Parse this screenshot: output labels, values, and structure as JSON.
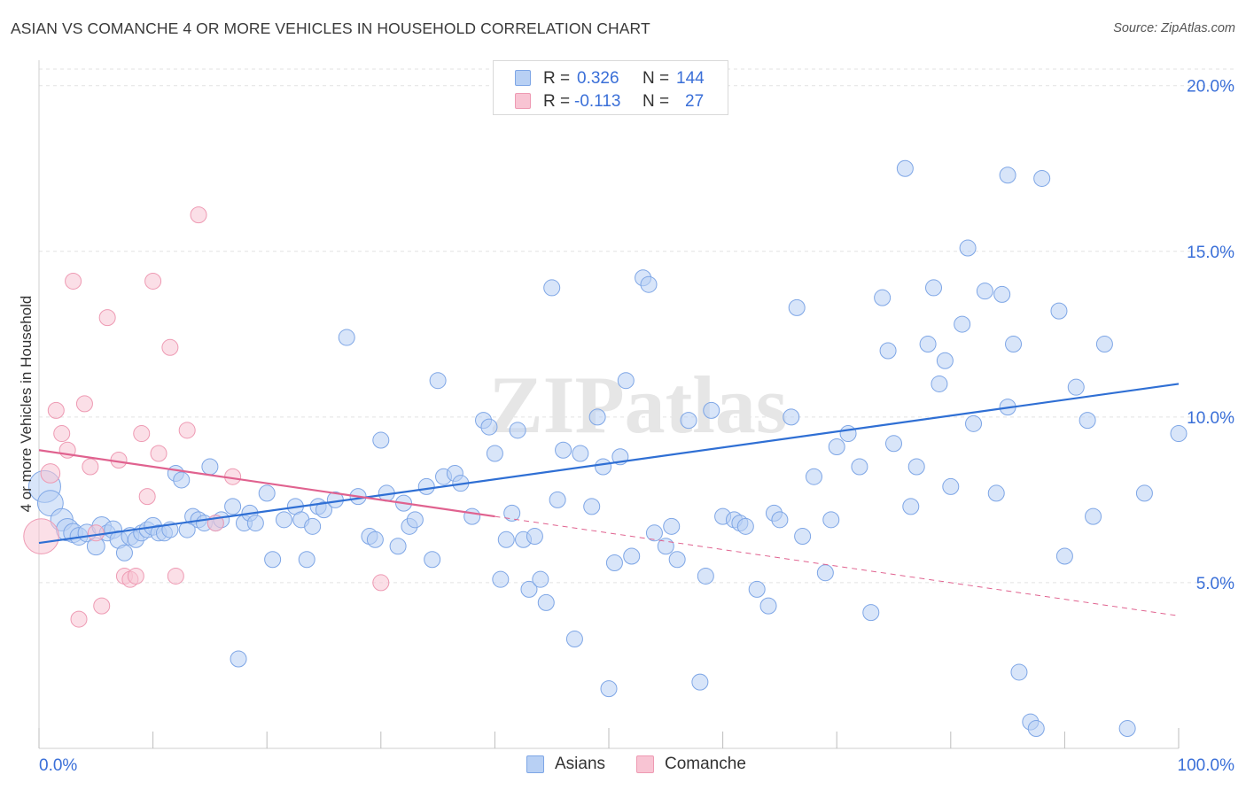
{
  "title": "ASIAN VS COMANCHE 4 OR MORE VEHICLES IN HOUSEHOLD CORRELATION CHART",
  "source": "Source: ZipAtlas.com",
  "watermark": "ZIPatlas",
  "legend": {
    "rows": [
      {
        "r_label": "R =",
        "r_value": "0.326",
        "n_label": "N =",
        "n_value": "144"
      },
      {
        "r_label": "R =",
        "r_value": "-0.113",
        "n_label": "N =",
        "n_value": "27"
      }
    ]
  },
  "colors": {
    "asians_fill": "#b8d0f4",
    "asians_stroke": "#7ea6e6",
    "asians_line": "#2f6fd4",
    "comanche_fill": "#f8c4d3",
    "comanche_stroke": "#ee9ab3",
    "comanche_line": "#e0628f",
    "tick_label": "#3a6fd8",
    "grid": "#e2e2e2"
  },
  "chart_data": {
    "type": "scatter",
    "title": "ASIAN VS COMANCHE 4 OR MORE VEHICLES IN HOUSEHOLD CORRELATION CHART",
    "xlabel": "",
    "ylabel": "4 or more Vehicles in Household",
    "xlim": [
      0,
      100
    ],
    "ylim": [
      0,
      20.5
    ],
    "x_ticks": [
      "0.0%",
      "100.0%"
    ],
    "y_ticks": [
      {
        "value": 5,
        "label": "5.0%"
      },
      {
        "value": 10,
        "label": "10.0%"
      },
      {
        "value": 15,
        "label": "15.0%"
      },
      {
        "value": 20,
        "label": "20.0%"
      }
    ],
    "grid": true,
    "legend_position": "top-center",
    "series": [
      {
        "name": "Asians",
        "r": 0.326,
        "n": 144,
        "trend": {
          "x0": 0,
          "y0": 6.2,
          "x1": 100,
          "y1": 11.0
        },
        "points": [
          [
            0.5,
            7.9,
            20
          ],
          [
            1.0,
            7.4,
            16
          ],
          [
            2.0,
            6.9,
            14
          ],
          [
            2.5,
            6.6,
            14
          ],
          [
            3.0,
            6.5,
            12
          ],
          [
            3.5,
            6.4,
            11
          ],
          [
            4.2,
            6.5,
            11
          ],
          [
            5.0,
            6.1,
            11
          ],
          [
            5.5,
            6.7,
            12
          ],
          [
            6.0,
            6.5,
            10
          ],
          [
            6.5,
            6.6,
            11
          ],
          [
            7.0,
            6.3,
            11
          ],
          [
            7.5,
            5.9,
            10
          ],
          [
            8.0,
            6.4,
            11
          ],
          [
            8.5,
            6.3,
            10
          ],
          [
            9.0,
            6.5,
            10
          ],
          [
            9.5,
            6.6,
            10
          ],
          [
            10.0,
            6.7,
            11
          ],
          [
            10.5,
            6.5,
            10
          ],
          [
            11.0,
            6.5,
            10
          ],
          [
            11.5,
            6.6,
            10
          ],
          [
            12.0,
            8.3,
            10
          ],
          [
            12.5,
            8.1,
            10
          ],
          [
            13.0,
            6.6,
            10
          ],
          [
            13.5,
            7.0,
            10
          ],
          [
            14.0,
            6.9,
            10
          ],
          [
            14.5,
            6.8,
            10
          ],
          [
            15.0,
            8.5,
            10
          ],
          [
            15.5,
            6.8,
            10
          ],
          [
            16.0,
            6.9,
            10
          ],
          [
            17.0,
            7.3,
            10
          ],
          [
            17.5,
            2.7,
            10
          ],
          [
            18.0,
            6.8,
            10
          ],
          [
            18.5,
            7.1,
            10
          ],
          [
            19.0,
            6.8,
            10
          ],
          [
            20.0,
            7.7,
            10
          ],
          [
            20.5,
            5.7,
            10
          ],
          [
            21.5,
            6.9,
            10
          ],
          [
            22.5,
            7.3,
            10
          ],
          [
            23.0,
            6.9,
            10
          ],
          [
            23.5,
            5.7,
            10
          ],
          [
            24.0,
            6.7,
            10
          ],
          [
            24.5,
            7.3,
            10
          ],
          [
            25.0,
            7.2,
            10
          ],
          [
            26.0,
            7.5,
            10
          ],
          [
            27.0,
            12.4,
            10
          ],
          [
            28.0,
            7.6,
            10
          ],
          [
            29.0,
            6.4,
            10
          ],
          [
            29.5,
            6.3,
            10
          ],
          [
            30.0,
            9.3,
            10
          ],
          [
            30.5,
            7.7,
            10
          ],
          [
            31.5,
            6.1,
            10
          ],
          [
            32.0,
            7.4,
            10
          ],
          [
            32.5,
            6.7,
            10
          ],
          [
            33.0,
            6.9,
            10
          ],
          [
            34.0,
            7.9,
            10
          ],
          [
            34.5,
            5.7,
            10
          ],
          [
            35.0,
            11.1,
            10
          ],
          [
            35.5,
            8.2,
            10
          ],
          [
            36.5,
            8.3,
            10
          ],
          [
            37.0,
            8.0,
            10
          ],
          [
            38.0,
            7.0,
            10
          ],
          [
            39.0,
            9.9,
            10
          ],
          [
            39.5,
            9.7,
            10
          ],
          [
            40.0,
            8.9,
            10
          ],
          [
            40.5,
            5.1,
            10
          ],
          [
            41.0,
            6.3,
            10
          ],
          [
            41.5,
            7.1,
            10
          ],
          [
            42.0,
            9.6,
            10
          ],
          [
            42.5,
            6.3,
            10
          ],
          [
            43.0,
            4.8,
            10
          ],
          [
            43.5,
            6.4,
            10
          ],
          [
            44.0,
            5.1,
            10
          ],
          [
            44.5,
            4.4,
            10
          ],
          [
            45.0,
            13.9,
            10
          ],
          [
            45.5,
            7.5,
            10
          ],
          [
            46.0,
            9.0,
            10
          ],
          [
            47.0,
            3.3,
            10
          ],
          [
            47.5,
            8.9,
            10
          ],
          [
            48.5,
            7.3,
            10
          ],
          [
            49.0,
            10.0,
            10
          ],
          [
            49.5,
            8.5,
            10
          ],
          [
            50.0,
            1.8,
            10
          ],
          [
            50.5,
            5.6,
            10
          ],
          [
            51.0,
            8.8,
            10
          ],
          [
            51.5,
            11.1,
            10
          ],
          [
            52.0,
            5.8,
            10
          ],
          [
            53.0,
            14.2,
            10
          ],
          [
            53.5,
            14.0,
            10
          ],
          [
            54.0,
            6.5,
            10
          ],
          [
            55.0,
            6.1,
            10
          ],
          [
            55.5,
            6.7,
            10
          ],
          [
            56.0,
            5.7,
            10
          ],
          [
            57.0,
            9.9,
            10
          ],
          [
            58.0,
            2.0,
            10
          ],
          [
            58.5,
            5.2,
            10
          ],
          [
            59.0,
            10.2,
            10
          ],
          [
            60.0,
            7.0,
            10
          ],
          [
            61.0,
            6.9,
            10
          ],
          [
            61.5,
            6.8,
            10
          ],
          [
            62.0,
            6.7,
            10
          ],
          [
            63.0,
            4.8,
            10
          ],
          [
            64.0,
            4.3,
            10
          ],
          [
            64.5,
            7.1,
            10
          ],
          [
            65.0,
            6.9,
            10
          ],
          [
            66.0,
            10.0,
            10
          ],
          [
            66.5,
            13.3,
            10
          ],
          [
            67.0,
            6.4,
            10
          ],
          [
            68.0,
            8.2,
            10
          ],
          [
            69.0,
            5.3,
            10
          ],
          [
            69.5,
            6.9,
            10
          ],
          [
            70.0,
            9.1,
            10
          ],
          [
            71.0,
            9.5,
            10
          ],
          [
            72.0,
            8.5,
            10
          ],
          [
            73.0,
            4.1,
            10
          ],
          [
            74.0,
            13.6,
            10
          ],
          [
            74.5,
            12.0,
            10
          ],
          [
            75.0,
            9.2,
            10
          ],
          [
            76.0,
            17.5,
            10
          ],
          [
            76.5,
            7.3,
            10
          ],
          [
            77.0,
            8.5,
            10
          ],
          [
            78.0,
            12.2,
            10
          ],
          [
            78.5,
            13.9,
            10
          ],
          [
            79.0,
            11.0,
            10
          ],
          [
            79.5,
            11.7,
            10
          ],
          [
            80.0,
            7.9,
            10
          ],
          [
            81.0,
            12.8,
            10
          ],
          [
            81.5,
            15.1,
            10
          ],
          [
            82.0,
            9.8,
            10
          ],
          [
            83.0,
            13.8,
            10
          ],
          [
            84.0,
            7.7,
            10
          ],
          [
            84.5,
            13.7,
            10
          ],
          [
            85.0,
            10.3,
            10
          ],
          [
            85.5,
            12.2,
            10
          ],
          [
            86.0,
            2.3,
            10
          ],
          [
            87.0,
            0.8,
            10
          ],
          [
            87.5,
            0.6,
            10
          ],
          [
            88.0,
            17.2,
            10
          ],
          [
            89.5,
            13.2,
            10
          ],
          [
            90.0,
            5.8,
            10
          ],
          [
            91.0,
            10.9,
            10
          ],
          [
            92.0,
            9.9,
            10
          ],
          [
            92.5,
            7.0,
            10
          ],
          [
            93.5,
            12.2,
            10
          ],
          [
            95.5,
            0.6,
            10
          ],
          [
            97.0,
            7.7,
            10
          ],
          [
            100.0,
            9.5,
            10
          ],
          [
            85.0,
            17.3,
            10
          ]
        ]
      },
      {
        "name": "Comanche",
        "r": -0.113,
        "n": 27,
        "trend": {
          "x0": 0,
          "y0": 9.0,
          "x1": 40,
          "y1": 7.0
        },
        "trend_dashed": {
          "x0": 40,
          "y0": 7.0,
          "x1": 100,
          "y1": 4.0
        },
        "points": [
          [
            0.2,
            6.4,
            22
          ],
          [
            1.0,
            8.3,
            12
          ],
          [
            1.5,
            10.2,
            10
          ],
          [
            2.0,
            9.5,
            10
          ],
          [
            2.5,
            9.0,
            10
          ],
          [
            3.0,
            14.1,
            10
          ],
          [
            3.5,
            3.9,
            10
          ],
          [
            4.0,
            10.4,
            10
          ],
          [
            4.5,
            8.5,
            10
          ],
          [
            5.0,
            6.5,
            10
          ],
          [
            5.5,
            4.3,
            10
          ],
          [
            6.0,
            13.0,
            10
          ],
          [
            7.0,
            8.7,
            10
          ],
          [
            7.5,
            5.2,
            10
          ],
          [
            8.0,
            5.1,
            10
          ],
          [
            8.5,
            5.2,
            10
          ],
          [
            9.0,
            9.5,
            10
          ],
          [
            9.5,
            7.6,
            10
          ],
          [
            10.0,
            14.1,
            10
          ],
          [
            10.5,
            8.9,
            10
          ],
          [
            11.5,
            12.1,
            10
          ],
          [
            12.0,
            5.2,
            10
          ],
          [
            13.0,
            9.6,
            10
          ],
          [
            14.0,
            16.1,
            10
          ],
          [
            15.5,
            6.8,
            10
          ],
          [
            17.0,
            8.2,
            10
          ],
          [
            30.0,
            5.0,
            10
          ]
        ]
      }
    ]
  },
  "bottom_legend": [
    {
      "label": "Asians"
    },
    {
      "label": "Comanche"
    }
  ]
}
